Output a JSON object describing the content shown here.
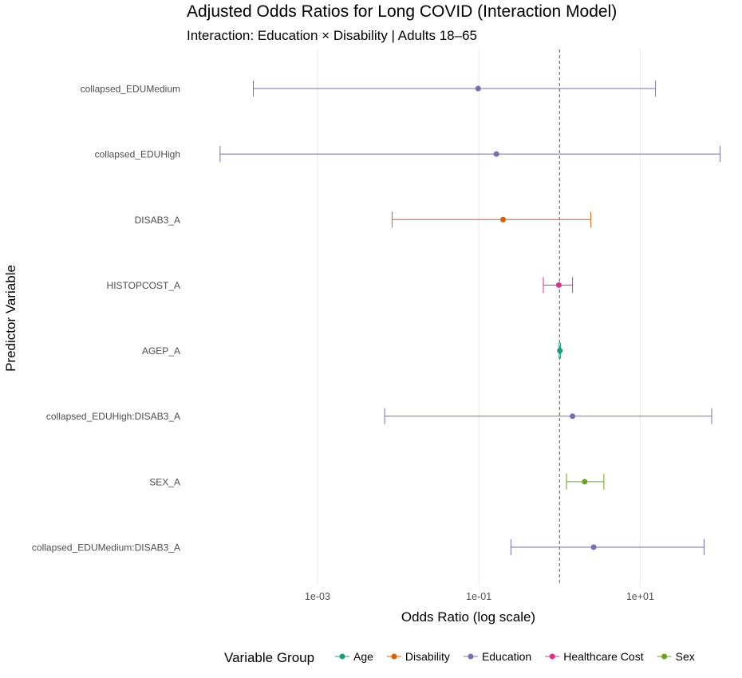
{
  "chart_data": {
    "type": "scatter",
    "title": "Adjusted Odds Ratios for Long COVID (Interaction Model)",
    "subtitle": "Interaction: Education × Disability | Adults 18–65",
    "xlabel": "Odds Ratio (log scale)",
    "ylabel": "Predictor Variable",
    "x_scale": "log10",
    "xlim": [
      2.5e-05,
      130
    ],
    "x_ticks": [
      0.001,
      0.1,
      10
    ],
    "x_tick_labels": [
      "1e-03",
      "1e-01",
      "1e+01"
    ],
    "reference_line": 1,
    "grid": "vertical major lines",
    "legend_title": "Variable Group",
    "legend_position": "bottom",
    "legend": [
      {
        "name": "Age",
        "color": "#1b9e77"
      },
      {
        "name": "Disability",
        "color": "#d95f02"
      },
      {
        "name": "Education",
        "color": "#7570b3"
      },
      {
        "name": "Healthcare Cost",
        "color": "#e7298a"
      },
      {
        "name": "Sex",
        "color": "#66a61e"
      }
    ],
    "categories": [
      "collapsed_EDUMedium",
      "collapsed_EDUHigh",
      "DISAB3_A",
      "HISTOPCOST_A",
      "AGEP_A",
      "collapsed_EDUHigh:DISAB3_A",
      "SEX_A",
      "collapsed_EDUMedium:DISAB3_A"
    ],
    "points": [
      {
        "term": "collapsed_EDUMedium",
        "group": "Education",
        "or": 0.098,
        "lo": 0.00016,
        "hi": 15.5
      },
      {
        "term": "collapsed_EDUHigh",
        "group": "Education",
        "or": 0.165,
        "lo": 6.2e-05,
        "hi": 98
      },
      {
        "term": "DISAB3_A",
        "group": "Disability",
        "or": 0.2,
        "lo": 0.0084,
        "hi": 2.45
      },
      {
        "term": "HISTOPCOST_A",
        "group": "Healthcare Cost",
        "or": 0.98,
        "lo": 0.63,
        "hi": 1.45
      },
      {
        "term": "AGEP_A",
        "group": "Age",
        "or": 1.01,
        "lo": 0.99,
        "hi": 1.03
      },
      {
        "term": "collapsed_EDUHigh:DISAB3_A",
        "group": "Education",
        "or": 1.45,
        "lo": 0.0068,
        "hi": 77
      },
      {
        "term": "SEX_A",
        "group": "Sex",
        "or": 2.05,
        "lo": 1.22,
        "hi": 3.55
      },
      {
        "term": "collapsed_EDUMedium:DISAB3_A",
        "group": "Education",
        "or": 2.65,
        "lo": 0.25,
        "hi": 62
      }
    ]
  }
}
